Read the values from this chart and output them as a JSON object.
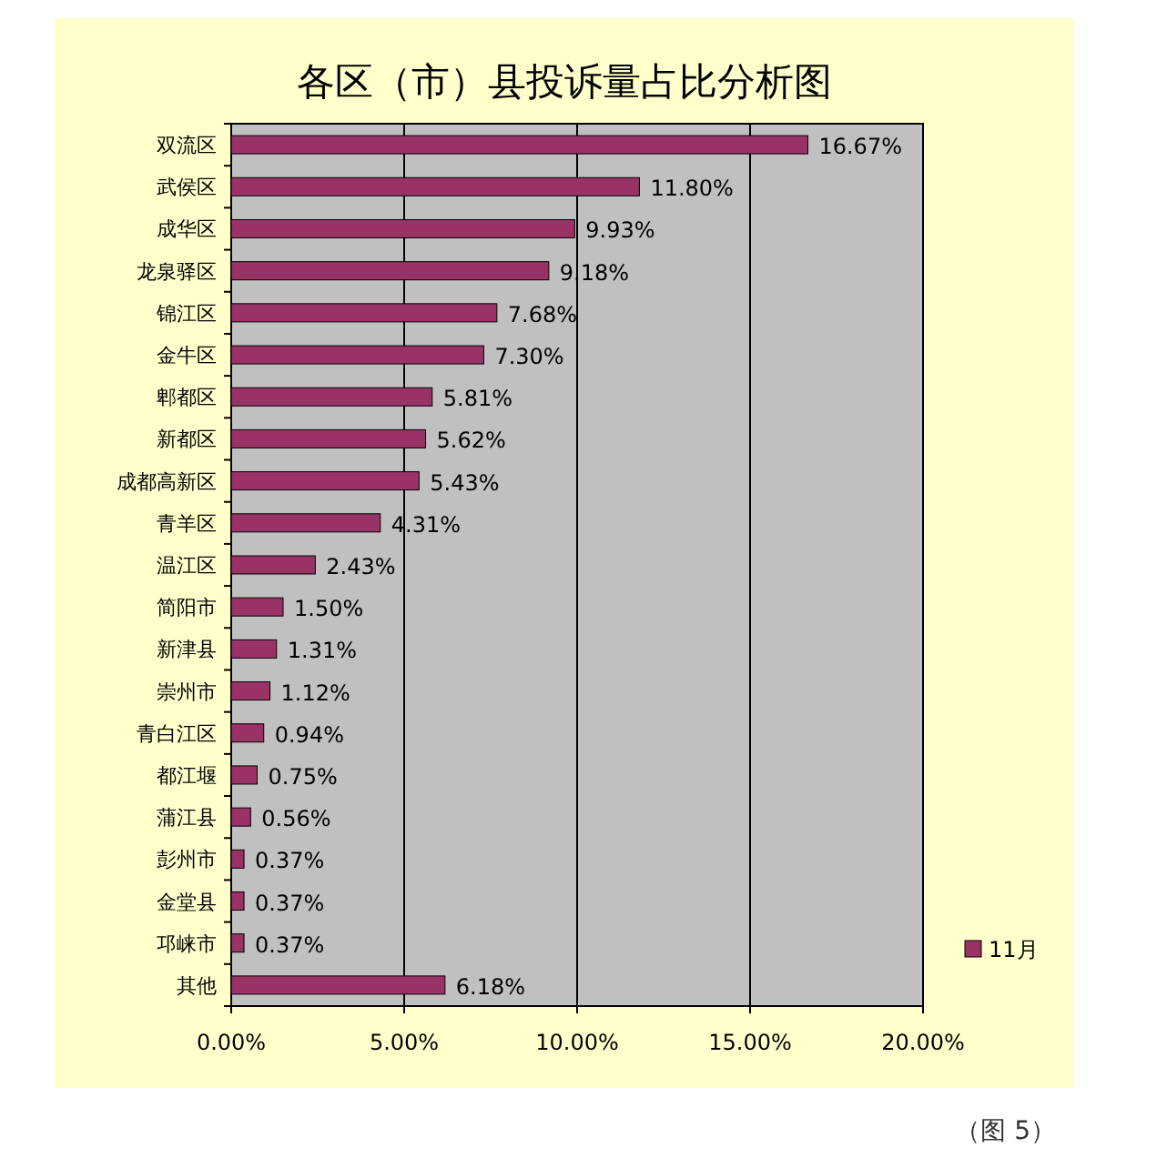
{
  "chart_data": {
    "type": "bar",
    "orientation": "horizontal",
    "title": "各区（市）县投诉量占比分析图",
    "categories": [
      "双流区",
      "武侯区",
      "成华区",
      "龙泉驿区",
      "锦江区",
      "金牛区",
      "郫都区",
      "新都区",
      "成都高新区",
      "青羊区",
      "温江区",
      "简阳市",
      "新津县",
      "崇州市",
      "青白江区",
      "都江堰",
      "蒲江县",
      "彭州市",
      "金堂县",
      "邛崃市",
      "其他"
    ],
    "series": [
      {
        "name": "11月",
        "color": "#993366",
        "values": [
          16.67,
          11.8,
          9.93,
          9.18,
          7.68,
          7.3,
          5.81,
          5.62,
          5.43,
          4.31,
          2.43,
          1.5,
          1.31,
          1.12,
          0.94,
          0.75,
          0.56,
          0.37,
          0.37,
          0.37,
          6.18
        ],
        "value_labels": [
          "16.67%",
          "11.80%",
          "9.93%",
          "9.18%",
          "7.68%",
          "7.30%",
          "5.81%",
          "5.62%",
          "5.43%",
          "4.31%",
          "2.43%",
          "1.50%",
          "1.31%",
          "1.12%",
          "0.94%",
          "0.75%",
          "0.56%",
          "0.37%",
          "0.37%",
          "0.37%",
          "6.18%"
        ]
      }
    ],
    "xlim": [
      0,
      20
    ],
    "xticks": [
      {
        "value": 0,
        "label": "0.00%"
      },
      {
        "value": 5,
        "label": "5.00%"
      },
      {
        "value": 10,
        "label": "10.00%"
      },
      {
        "value": 15,
        "label": "15.00%"
      },
      {
        "value": 20,
        "label": "20.00%"
      }
    ],
    "grid": "x",
    "legend": "right",
    "annotations": [
      "（图 5）"
    ]
  }
}
